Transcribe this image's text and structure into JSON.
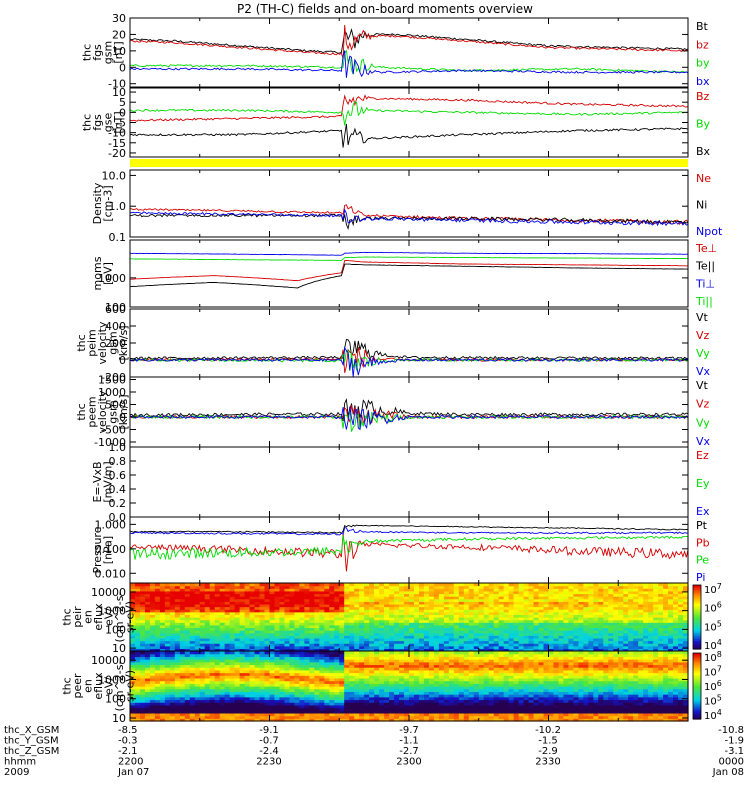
{
  "title": "P2 (TH-C) fields and on-board moments overview",
  "colors": {
    "black": "#000000",
    "red": "#d40000",
    "green": "#00dd00",
    "blue": "#0000ee",
    "yellow": "#ffff00",
    "spec_bg": "#ffff00"
  },
  "chart_data": [
    {
      "type": "line",
      "id": "p1",
      "ylabel": [
        "thc",
        "fgs",
        "gsm",
        "[nT]"
      ],
      "yticks": [
        30,
        20,
        10,
        0,
        -10
      ],
      "ytick_labels": [
        "30",
        "20",
        "10",
        "0",
        "-10"
      ],
      "ylim": [
        -12,
        30
      ],
      "log": false,
      "series": [
        {
          "name": "Bt",
          "color": "black",
          "x": [
            0,
            0.08,
            0.2,
            0.32,
            0.38,
            0.385,
            0.4,
            0.42,
            0.48,
            0.6,
            0.75,
            1.0
          ],
          "y": [
            17,
            16,
            13,
            10,
            9,
            18,
            16,
            20,
            20,
            17,
            13,
            11
          ]
        },
        {
          "name": "bz",
          "color": "red",
          "x": [
            0,
            0.08,
            0.2,
            0.32,
            0.38,
            0.385,
            0.4,
            0.42,
            0.48,
            0.6,
            0.75,
            1.0
          ],
          "y": [
            16,
            15,
            12,
            9,
            8,
            17,
            15,
            19,
            19,
            16,
            12,
            10
          ]
        },
        {
          "name": "by",
          "color": "green",
          "x": [
            0,
            0.2,
            0.38,
            0.385,
            0.4,
            0.45,
            0.6,
            0.8,
            1.0
          ],
          "y": [
            1,
            1,
            0,
            4,
            2,
            0,
            -2,
            -1,
            -3
          ]
        },
        {
          "name": "bx",
          "color": "blue",
          "x": [
            0,
            0.2,
            0.38,
            0.385,
            0.4,
            0.45,
            0.6,
            0.8,
            1.0
          ],
          "y": [
            -1,
            -1,
            -2,
            2,
            -1,
            -3,
            -2,
            -3,
            -3
          ]
        }
      ],
      "noise": 0.6,
      "burst": [
        0.38,
        0.44,
        10
      ]
    },
    {
      "type": "line",
      "id": "p2",
      "ylabel": [
        "thc",
        "fgs",
        "gse",
        "[nT]"
      ],
      "yticks": [
        10,
        5,
        0,
        -5,
        -10,
        -15,
        -20
      ],
      "ytick_labels": [
        "10",
        "5",
        "0",
        "-5",
        "-10",
        "-15",
        "-20"
      ],
      "ylim": [
        -22,
        12
      ],
      "log": false,
      "series": [
        {
          "name": "Bz",
          "color": "red",
          "x": [
            0,
            0.2,
            0.38,
            0.385,
            0.42,
            0.6,
            0.8,
            1.0
          ],
          "y": [
            -4,
            -3,
            -2,
            5,
            7,
            6,
            4,
            3
          ]
        },
        {
          "name": "By",
          "color": "green",
          "x": [
            0,
            0.2,
            0.38,
            0.385,
            0.42,
            0.6,
            0.8,
            1.0
          ],
          "y": [
            1,
            1,
            0,
            1,
            1,
            0,
            -1,
            0
          ]
        },
        {
          "name": "Bx",
          "color": "black",
          "x": [
            0,
            0.2,
            0.38,
            0.385,
            0.42,
            0.6,
            0.8,
            1.0
          ],
          "y": [
            -11,
            -11,
            -9,
            -12,
            -13,
            -11,
            -9,
            -8
          ]
        }
      ],
      "noise": 0.5,
      "burst": [
        0.38,
        0.43,
        8
      ]
    },
    {
      "type": "line",
      "id": "p3",
      "ylabel": [
        "Density",
        "[cm-3]"
      ],
      "yticks": [
        10,
        1,
        0.1
      ],
      "ytick_labels": [
        "10.0",
        "1.0",
        "0.1"
      ],
      "ylim": [
        0.1,
        15
      ],
      "log": true,
      "series": [
        {
          "name": "Ne",
          "color": "red",
          "x": [
            0,
            0.2,
            0.38,
            0.385,
            0.42,
            0.6,
            0.8,
            1.0
          ],
          "y": [
            0.8,
            0.7,
            0.6,
            0.9,
            0.5,
            0.4,
            0.35,
            0.3
          ]
        },
        {
          "name": "Ni",
          "color": "black",
          "x": [
            0,
            0.2,
            0.38,
            0.385,
            0.42,
            0.6,
            0.8,
            1.0
          ],
          "y": [
            0.5,
            0.5,
            0.5,
            0.3,
            0.4,
            0.4,
            0.35,
            0.3
          ]
        },
        {
          "name": "Npot",
          "color": "blue",
          "x": [
            0,
            0.2,
            0.38,
            0.385,
            0.42,
            0.6,
            0.8,
            1.0
          ],
          "y": [
            0.6,
            0.55,
            0.5,
            0.4,
            0.4,
            0.35,
            0.3,
            0.28
          ]
        }
      ],
      "noise": 0.06,
      "burst": [
        0.38,
        0.42,
        0.3
      ]
    },
    {
      "type": "line",
      "id": "p4",
      "ylabel": [
        "moms",
        "[eV]"
      ],
      "yticks": [
        1000,
        100
      ],
      "ytick_labels": [
        "1000",
        "100"
      ],
      "ylim": [
        100,
        20000
      ],
      "log": true,
      "series": [
        {
          "name": "Te⊥",
          "color": "red",
          "x": [
            0,
            0.15,
            0.3,
            0.38,
            0.385,
            0.42,
            0.6,
            0.8,
            1.0
          ],
          "y": [
            900,
            1200,
            800,
            1500,
            4000,
            3500,
            3000,
            2800,
            2600
          ]
        },
        {
          "name": "Te||",
          "color": "black",
          "x": [
            0,
            0.15,
            0.3,
            0.38,
            0.385,
            0.42,
            0.6,
            0.8,
            1.0
          ],
          "y": [
            500,
            700,
            450,
            1200,
            3000,
            2800,
            2500,
            2200,
            2000
          ]
        },
        {
          "name": "Ti⊥",
          "color": "blue",
          "x": [
            0,
            0.2,
            0.38,
            0.385,
            0.42,
            0.6,
            0.8,
            1.0
          ],
          "y": [
            7000,
            6500,
            6000,
            7000,
            7500,
            7000,
            6800,
            6500
          ]
        },
        {
          "name": "Ti||",
          "color": "green",
          "x": [
            0,
            0.2,
            0.38,
            0.385,
            0.42,
            0.6,
            0.8,
            1.0
          ],
          "y": [
            4500,
            4200,
            4000,
            5000,
            5200,
            5000,
            4800,
            4600
          ]
        }
      ],
      "noise": 0.04,
      "burst": [
        0.38,
        0.42,
        0.2
      ]
    },
    {
      "type": "line",
      "id": "p5",
      "ylabel": [
        "thc",
        "peim",
        "velocity",
        "gsm",
        "[km/s]"
      ],
      "yticks": [
        600,
        400,
        200,
        0,
        -200
      ],
      "ytick_labels": [
        "600",
        "400",
        "200",
        "0",
        "-200"
      ],
      "ylim": [
        -200,
        600
      ],
      "log": false,
      "series": [
        {
          "name": "Vt",
          "color": "black",
          "x": [
            0,
            0.38,
            0.4,
            0.45,
            0.5,
            1.0
          ],
          "y": [
            20,
            30,
            150,
            60,
            30,
            20
          ]
        },
        {
          "name": "Vz",
          "color": "red",
          "x": [
            0,
            0.38,
            0.4,
            0.45,
            0.5,
            1.0
          ],
          "y": [
            0,
            10,
            40,
            10,
            0,
            0
          ]
        },
        {
          "name": "Vy",
          "color": "green",
          "x": [
            0,
            0.38,
            0.4,
            0.45,
            0.5,
            1.0
          ],
          "y": [
            0,
            -10,
            -40,
            -10,
            0,
            0
          ]
        },
        {
          "name": "Vx",
          "color": "blue",
          "x": [
            0,
            0.38,
            0.4,
            0.45,
            0.5,
            1.0
          ],
          "y": [
            0,
            0,
            -60,
            -20,
            0,
            0
          ]
        }
      ],
      "noise": 15,
      "burst": [
        0.38,
        0.46,
        180
      ]
    },
    {
      "type": "line",
      "id": "p6",
      "ylabel": [
        "thc",
        "peem",
        "velocity",
        "gsm",
        "[km/s]"
      ],
      "yticks": [
        1500,
        1000,
        500,
        0,
        -500,
        -1000
      ],
      "ytick_labels": [
        "1500",
        "1000",
        "500",
        "0",
        "-500",
        "-1000"
      ],
      "ylim": [
        -1200,
        1600
      ],
      "log": false,
      "series": [
        {
          "name": "Vt",
          "color": "black",
          "x": [
            0,
            0.38,
            0.4,
            0.5,
            0.6,
            1.0
          ],
          "y": [
            80,
            120,
            400,
            150,
            100,
            100
          ]
        },
        {
          "name": "Vz",
          "color": "red",
          "x": [
            0,
            0.38,
            0.4,
            0.5,
            0.6,
            1.0
          ],
          "y": [
            0,
            0,
            100,
            0,
            0,
            0
          ]
        },
        {
          "name": "Vy",
          "color": "green",
          "x": [
            0,
            0.38,
            0.4,
            0.5,
            0.6,
            1.0
          ],
          "y": [
            0,
            0,
            -150,
            0,
            0,
            0
          ]
        },
        {
          "name": "Vx",
          "color": "blue",
          "x": [
            0,
            0.38,
            0.4,
            0.5,
            0.6,
            1.0
          ],
          "y": [
            0,
            0,
            -100,
            0,
            0,
            0
          ]
        }
      ],
      "noise": 60,
      "burst": [
        0.38,
        0.5,
        500
      ]
    },
    {
      "type": "line",
      "id": "p7",
      "ylabel": [
        "E=-VxB",
        "[mV/m]"
      ],
      "yticks": [
        1.0,
        0.8,
        0.6,
        0.4,
        0.2,
        0.0
      ],
      "ytick_labels": [
        "1.0",
        "0.8",
        "0.6",
        "0.4",
        "0.2",
        "0.0"
      ],
      "ylim": [
        0,
        1
      ],
      "log": false,
      "series": [
        {
          "name": "Ez",
          "color": "red",
          "x": [],
          "y": []
        },
        {
          "name": "Ey",
          "color": "green",
          "x": [],
          "y": []
        },
        {
          "name": "Ex",
          "color": "blue",
          "x": [],
          "y": []
        }
      ],
      "noise": 0,
      "burst": [
        0,
        0,
        0
      ]
    },
    {
      "type": "line",
      "id": "p8",
      "ylabel": [
        "Pressure",
        "[nPa]"
      ],
      "yticks": [
        1,
        0.1,
        0.01
      ],
      "ytick_labels": [
        "1.000",
        "0.100",
        "0.010"
      ],
      "ylim": [
        0.004,
        2
      ],
      "log": true,
      "series": [
        {
          "name": "Pt",
          "color": "black",
          "x": [
            0,
            0.2,
            0.38,
            0.385,
            0.42,
            0.6,
            0.8,
            1.0
          ],
          "y": [
            0.5,
            0.5,
            0.45,
            0.8,
            0.9,
            0.8,
            0.7,
            0.6
          ]
        },
        {
          "name": "Pb",
          "color": "red",
          "x": [
            0,
            0.2,
            0.38,
            0.385,
            0.42,
            0.6,
            0.8,
            1.0
          ],
          "y": [
            0.12,
            0.09,
            0.06,
            0.07,
            0.15,
            0.12,
            0.08,
            0.06
          ]
        },
        {
          "name": "Pe",
          "color": "green",
          "x": [
            0,
            0.2,
            0.38,
            0.385,
            0.42,
            0.6,
            0.8,
            1.0
          ],
          "y": [
            0.06,
            0.07,
            0.08,
            0.12,
            0.2,
            0.25,
            0.28,
            0.3
          ]
        },
        {
          "name": "Pi",
          "color": "blue",
          "x": [
            0,
            0.2,
            0.38,
            0.385,
            0.42,
            0.6,
            0.8,
            1.0
          ],
          "y": [
            0.45,
            0.42,
            0.4,
            0.6,
            0.5,
            0.45,
            0.45,
            0.45
          ]
        }
      ],
      "noise": 0.04,
      "burst": [
        0.38,
        0.42,
        0.2
      ]
    },
    {
      "type": "heatmap",
      "id": "p9",
      "ylabel": [
        "thc",
        "peir",
        "en",
        "eflux",
        "eV/",
        "(cm^2-s-",
        "sr-eV)"
      ],
      "yticks": [
        10000,
        1000,
        100,
        10
      ],
      "ytick_labels": [
        "10000",
        "1000",
        "100",
        "10"
      ],
      "ylim": [
        7,
        30000
      ],
      "log": true,
      "colorbar": {
        "ticks": [
          "10^7",
          "10^6",
          "10^5",
          "10^4"
        ],
        "range": [
          4,
          7
        ]
      }
    },
    {
      "type": "heatmap",
      "id": "p10",
      "ylabel": [
        "thc",
        "peer",
        "en",
        "eflux",
        "eV/",
        "(cm^2-s-",
        "sr-eV)"
      ],
      "yticks": [
        10000,
        1000,
        100,
        10
      ],
      "ytick_labels": [
        "10000",
        "1000",
        "100",
        "10"
      ],
      "ylim": [
        7,
        30000
      ],
      "log": true,
      "colorbar": {
        "ticks": [
          "10^8",
          "10^7",
          "10^6",
          "10^5",
          "10^4"
        ],
        "range": [
          4,
          8
        ]
      }
    }
  ],
  "footer": {
    "rows": [
      {
        "label": "thc_X_GSM",
        "values": [
          "-8.5",
          "-9.1",
          "-9.7",
          "-10.2",
          "-10.8"
        ]
      },
      {
        "label": "thc_Y_GSM",
        "values": [
          "-0.3",
          "-0.7",
          "-1.1",
          "-1.5",
          "-1.9"
        ]
      },
      {
        "label": "thc_Z_GSM",
        "values": [
          "-2.1",
          "-2.4",
          "-2.7",
          "-2.9",
          "-3.1"
        ]
      },
      {
        "label": "hhmm",
        "values": [
          "2200",
          "2230",
          "2300",
          "2330",
          "0000"
        ]
      },
      {
        "label": "2009",
        "values": [
          "Jan 07",
          "",
          "",
          "",
          "Jan 08"
        ]
      }
    ]
  }
}
